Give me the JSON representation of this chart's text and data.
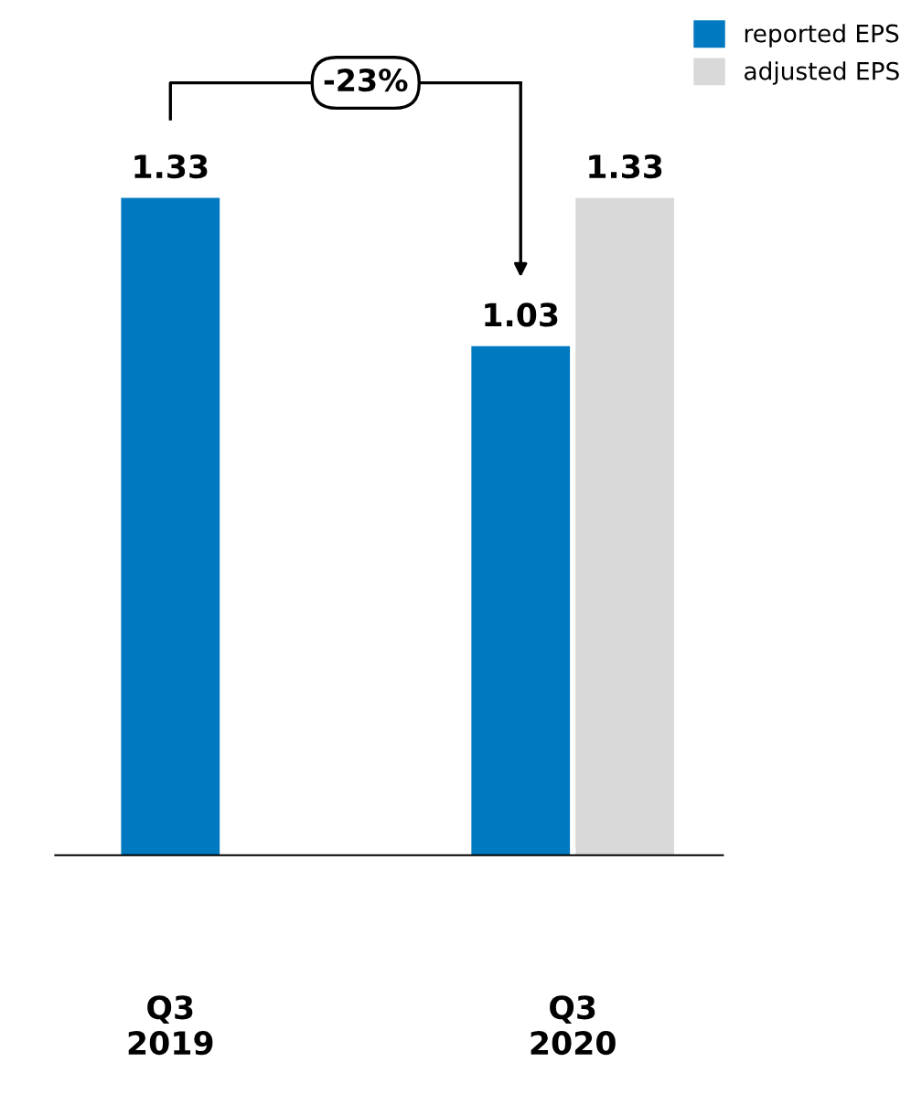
{
  "chart_data": {
    "type": "bar",
    "categories": [
      "Q3\n2019",
      "Q3\n2020"
    ],
    "series": [
      {
        "name": "reported EPS",
        "color": "#0079c1",
        "values": [
          1.33,
          1.03
        ]
      },
      {
        "name": "adjusted EPS",
        "color": "#d9d9d9",
        "values": [
          null,
          1.33
        ]
      }
    ],
    "data_labels": true,
    "legend": "top right",
    "annotations": [
      "-23%"
    ]
  }
}
